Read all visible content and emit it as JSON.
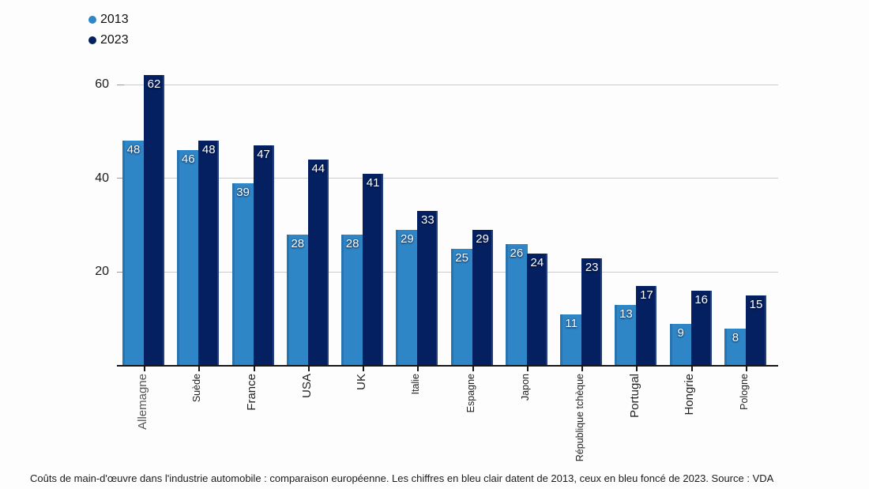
{
  "legend": {
    "items": [
      {
        "label": "2013",
        "color": "#2F86C7"
      },
      {
        "label": "2023",
        "color": "#052060"
      }
    ]
  },
  "caption": "Coûts de main-d'œuvre dans l'industrie automobile : comparaison européenne. Les chiffres en bleu clair datent de 2013, ceux en bleu foncé de 2023. Source : VDA",
  "chart_data": {
    "type": "bar",
    "title": "",
    "xlabel": "",
    "ylabel": "",
    "categories": [
      "Allemagne",
      "Suède",
      "France",
      "USA",
      "UK",
      "Italie",
      "Espagne",
      "Japon",
      "République tchèque",
      "Portugal",
      "Hongrie",
      "Pologne"
    ],
    "series": [
      {
        "name": "2013",
        "color": "#2F86C7",
        "values": [
          48,
          46,
          39,
          28,
          28,
          29,
          25,
          26,
          11,
          13,
          9,
          8
        ]
      },
      {
        "name": "2023",
        "color": "#052060",
        "values": [
          62,
          48,
          47,
          44,
          41,
          33,
          29,
          24,
          23,
          17,
          16,
          15
        ]
      }
    ],
    "yticks": [
      20,
      40,
      60
    ],
    "ylim": [
      0,
      66
    ],
    "grid": true,
    "legend_position": "top-left",
    "value_labels": "inside-top",
    "category_label_emphasis": [
      "lg",
      "sm",
      "lg",
      "lg",
      "lg",
      "sm",
      "sm",
      "sm",
      "sm",
      "lg",
      "lg",
      "sm"
    ],
    "category_label_muted": [
      true,
      false,
      false,
      false,
      false,
      false,
      false,
      false,
      false,
      false,
      false,
      false
    ]
  }
}
